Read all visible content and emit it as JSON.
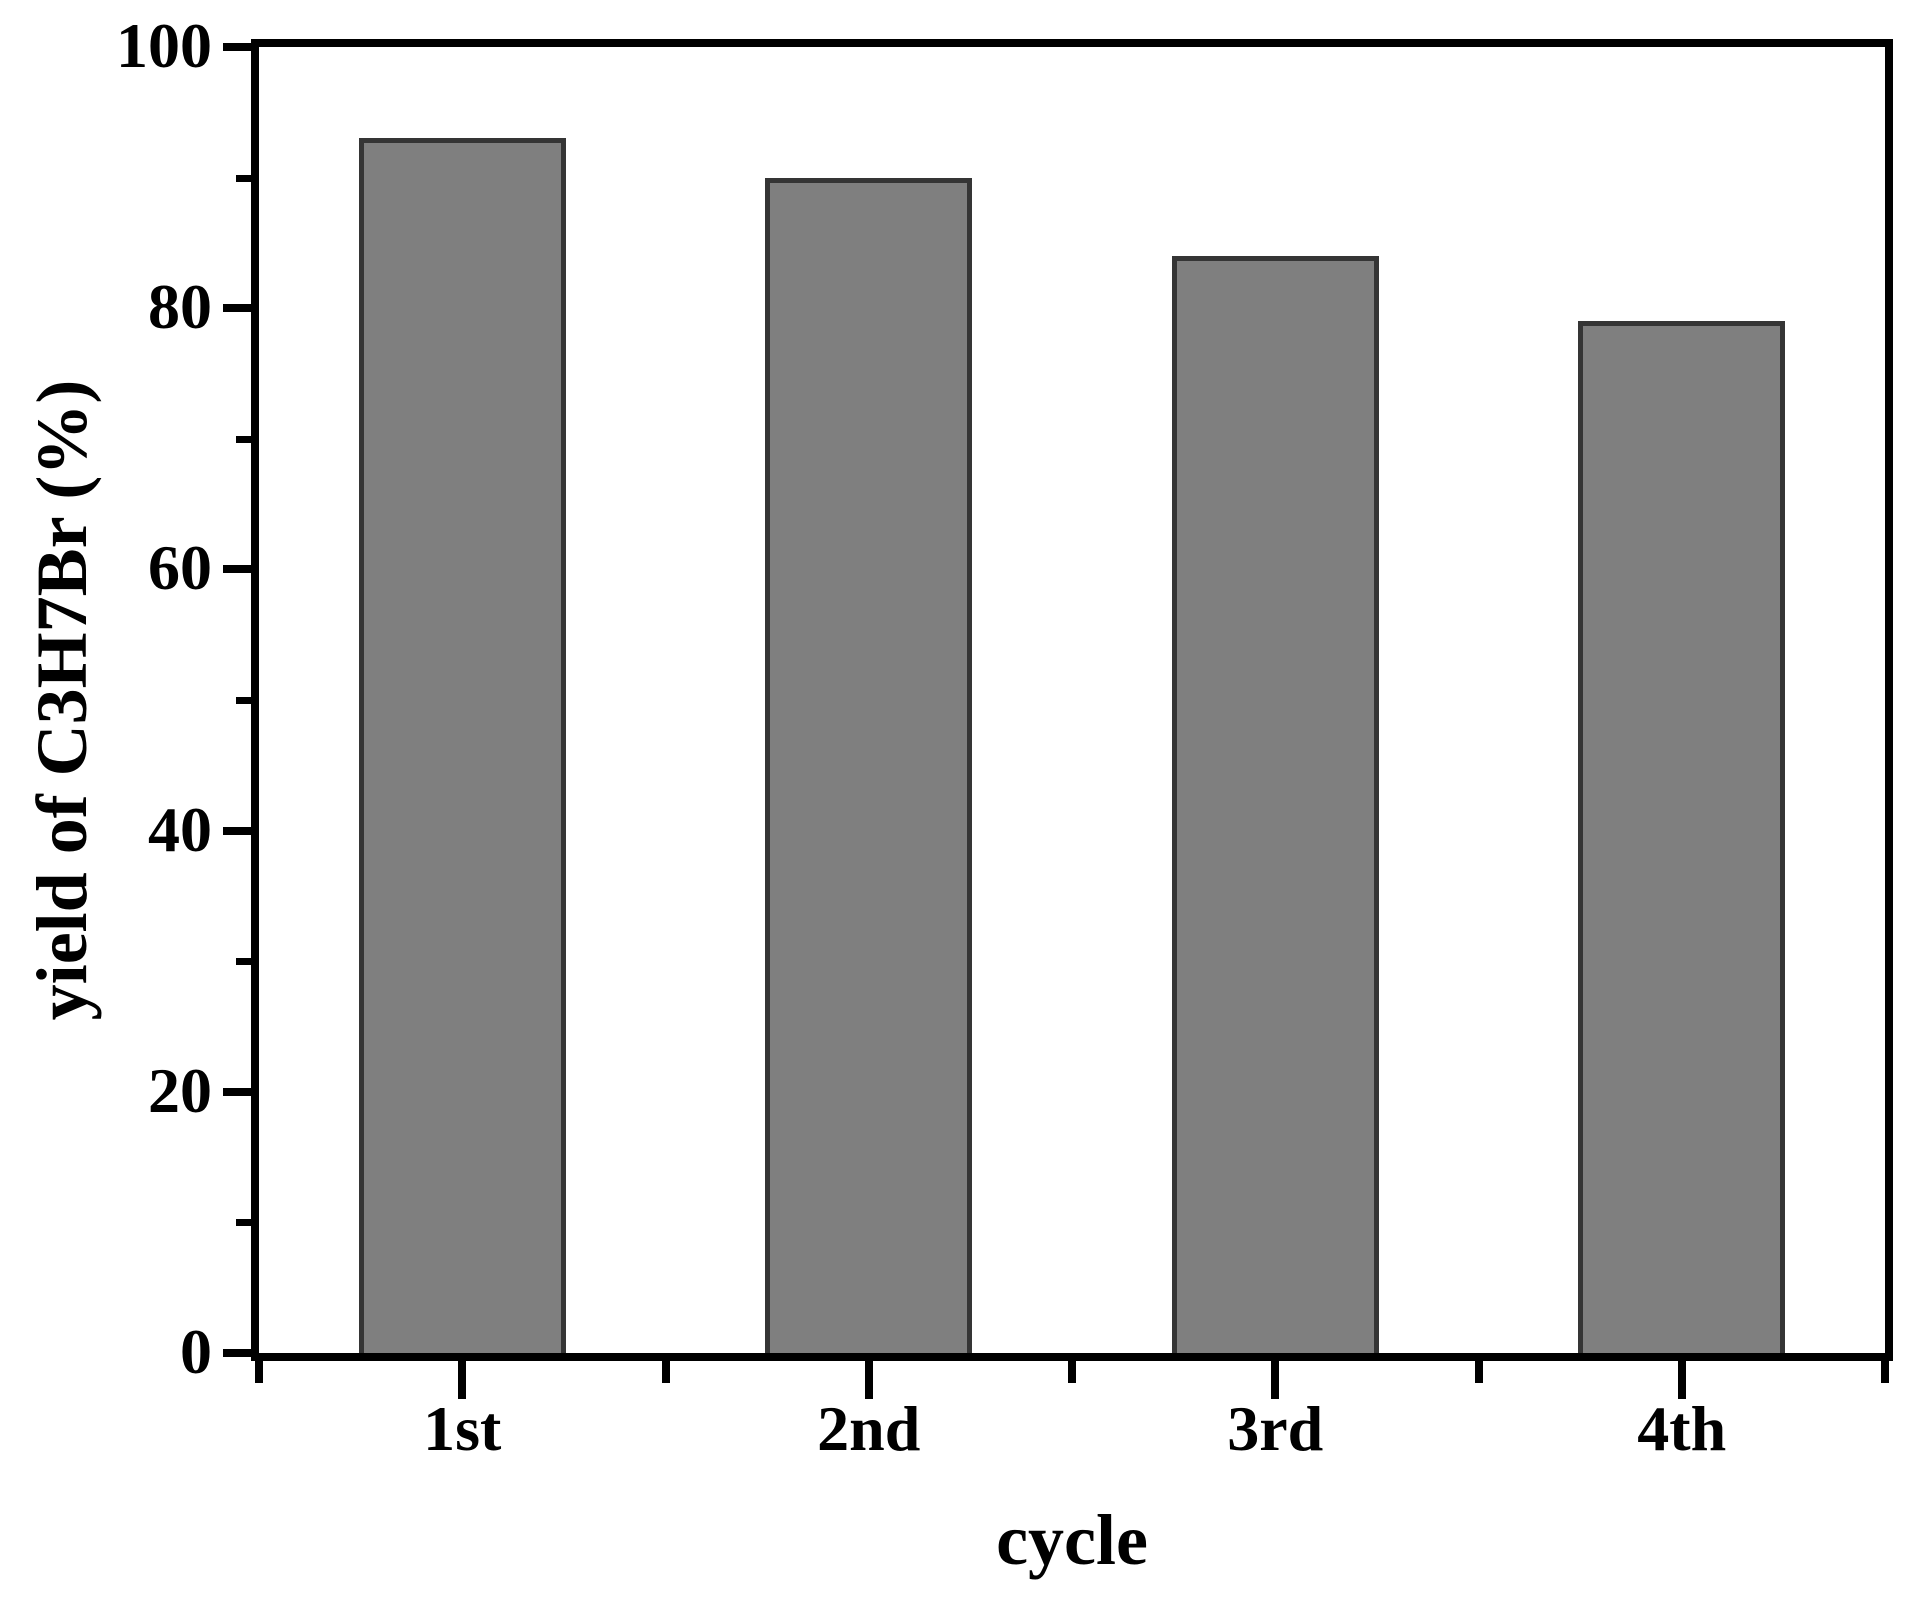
{
  "chart_data": {
    "type": "bar",
    "categories": [
      "1st",
      "2nd",
      "3rd",
      "4th"
    ],
    "values": [
      93,
      90,
      84,
      79
    ],
    "title": "",
    "xlabel": "cycle",
    "ylabel": "yield of C3H7Br (%)",
    "ylim": [
      0,
      100
    ],
    "yticks_major": [
      0,
      20,
      40,
      60,
      80,
      100
    ],
    "yticks_minor": [
      10,
      30,
      50,
      70,
      90
    ],
    "grid": false,
    "legend": "none",
    "bar_width_fraction": 0.51,
    "bar_color": "#7f7f7f",
    "bar_border_color": "#353535",
    "axis_color": "#000000",
    "background_color": "#ffffff"
  }
}
